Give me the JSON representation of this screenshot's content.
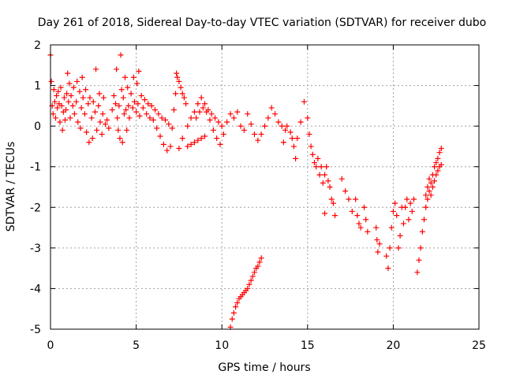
{
  "chart_data": {
    "type": "scatter",
    "title": "Day 261 of 2018, Sidereal Day-to-day VTEC variation (SDTVAR) for receiver dubo",
    "xlabel": "GPS time / hours",
    "ylabel": "SDTVAR / TECUs",
    "xlim": [
      0,
      25
    ],
    "ylim": [
      -5,
      2
    ],
    "xticks": [
      0,
      5,
      10,
      15,
      20,
      25
    ],
    "yticks": [
      -5,
      -4,
      -3,
      -2,
      -1,
      0,
      1,
      2
    ],
    "xtick_labels": [
      "0",
      "5",
      "10",
      "15",
      "20",
      "25"
    ],
    "ytick_labels": [
      "-5",
      "-4",
      "-3",
      "-2",
      "-1",
      "0",
      "1",
      "2"
    ],
    "grid": true,
    "marker": "+",
    "color": "#ff0000",
    "series": [
      {
        "name": "SDTVAR",
        "points": [
          [
            0.0,
            1.75
          ],
          [
            0.05,
            1.1
          ],
          [
            0.1,
            0.5
          ],
          [
            0.15,
            0.3
          ],
          [
            0.2,
            0.9
          ],
          [
            0.25,
            0.6
          ],
          [
            0.3,
            0.2
          ],
          [
            0.35,
            0.75
          ],
          [
            0.4,
            0.45
          ],
          [
            0.45,
            0.85
          ],
          [
            0.5,
            0.55
          ],
          [
            0.55,
            0.1
          ],
          [
            0.6,
            0.95
          ],
          [
            0.65,
            0.5
          ],
          [
            0.7,
            -0.1
          ],
          [
            0.75,
            0.35
          ],
          [
            0.8,
            0.7
          ],
          [
            0.85,
            0.15
          ],
          [
            0.9,
            0.4
          ],
          [
            0.95,
            0.8
          ],
          [
            1.0,
            1.3
          ],
          [
            1.05,
            0.6
          ],
          [
            1.1,
            1.05
          ],
          [
            1.15,
            0.2
          ],
          [
            1.2,
            0.75
          ],
          [
            1.3,
            0.5
          ],
          [
            1.35,
            0.95
          ],
          [
            1.4,
            0.3
          ],
          [
            1.5,
            0.6
          ],
          [
            1.55,
            1.1
          ],
          [
            1.6,
            0.1
          ],
          [
            1.7,
            0.85
          ],
          [
            1.75,
            -0.05
          ],
          [
            1.8,
            0.45
          ],
          [
            1.85,
            1.2
          ],
          [
            1.9,
            0.7
          ],
          [
            2.0,
            0.3
          ],
          [
            2.05,
            0.9
          ],
          [
            2.1,
            -0.15
          ],
          [
            2.2,
            0.55
          ],
          [
            2.25,
            -0.4
          ],
          [
            2.3,
            0.7
          ],
          [
            2.4,
            0.2
          ],
          [
            2.45,
            -0.3
          ],
          [
            2.5,
            0.6
          ],
          [
            2.6,
            0.35
          ],
          [
            2.65,
            1.4
          ],
          [
            2.7,
            -0.1
          ],
          [
            2.8,
            0.5
          ],
          [
            2.85,
            0.8
          ],
          [
            2.9,
            0.1
          ],
          [
            3.0,
            -0.2
          ],
          [
            3.05,
            0.3
          ],
          [
            3.1,
            0.7
          ],
          [
            3.2,
            0.05
          ],
          [
            3.3,
            0.15
          ],
          [
            3.4,
            -0.05
          ],
          [
            3.6,
            0.4
          ],
          [
            3.7,
            0.75
          ],
          [
            3.8,
            0.55
          ],
          [
            3.85,
            1.4
          ],
          [
            3.9,
            0.2
          ],
          [
            3.95,
            -0.1
          ],
          [
            4.0,
            0.5
          ],
          [
            4.05,
            -0.3
          ],
          [
            4.1,
            1.75
          ],
          [
            4.15,
            0.9
          ],
          [
            4.2,
            -0.4
          ],
          [
            4.25,
            0.7
          ],
          [
            4.3,
            0.3
          ],
          [
            4.35,
            1.2
          ],
          [
            4.4,
            0.4
          ],
          [
            4.45,
            -0.1
          ],
          [
            4.5,
            0.95
          ],
          [
            4.55,
            0.5
          ],
          [
            4.6,
            0.2
          ],
          [
            4.7,
            0.8
          ],
          [
            4.8,
            0.45
          ],
          [
            4.85,
            1.2
          ],
          [
            4.9,
            0.6
          ],
          [
            5.0,
            0.35
          ],
          [
            5.05,
            1.05
          ],
          [
            5.1,
            0.55
          ],
          [
            5.15,
            1.35
          ],
          [
            5.2,
            0.25
          ],
          [
            5.3,
            0.75
          ],
          [
            5.4,
            0.45
          ],
          [
            5.5,
            0.65
          ],
          [
            5.6,
            0.3
          ],
          [
            5.7,
            0.55
          ],
          [
            5.8,
            0.2
          ],
          [
            5.9,
            0.5
          ],
          [
            6.0,
            0.15
          ],
          [
            6.1,
            0.4
          ],
          [
            6.2,
            -0.05
          ],
          [
            6.3,
            0.3
          ],
          [
            6.4,
            -0.25
          ],
          [
            6.5,
            0.2
          ],
          [
            6.6,
            -0.45
          ],
          [
            6.7,
            0.15
          ],
          [
            6.8,
            -0.6
          ],
          [
            6.9,
            0.05
          ],
          [
            7.0,
            -0.5
          ],
          [
            7.1,
            -0.05
          ],
          [
            7.2,
            0.4
          ],
          [
            7.3,
            0.8
          ],
          [
            7.35,
            1.3
          ],
          [
            7.4,
            1.2
          ],
          [
            7.5,
            1.1
          ],
          [
            7.6,
            0.95
          ],
          [
            7.7,
            0.8
          ],
          [
            7.8,
            0.7
          ],
          [
            7.9,
            0.55
          ],
          [
            7.5,
            -0.55
          ],
          [
            7.7,
            -0.3
          ],
          [
            8.0,
            -0.5
          ],
          [
            8.2,
            -0.45
          ],
          [
            8.4,
            -0.4
          ],
          [
            8.6,
            -0.35
          ],
          [
            8.8,
            -0.3
          ],
          [
            9.0,
            -0.25
          ],
          [
            8.0,
            0.0
          ],
          [
            8.2,
            0.2
          ],
          [
            8.4,
            0.35
          ],
          [
            8.6,
            0.55
          ],
          [
            8.8,
            0.7
          ],
          [
            9.0,
            0.55
          ],
          [
            9.2,
            0.4
          ],
          [
            9.4,
            0.3
          ],
          [
            9.6,
            0.2
          ],
          [
            9.8,
            0.1
          ],
          [
            10.0,
            0.0
          ],
          [
            8.5,
            0.2
          ],
          [
            8.7,
            0.35
          ],
          [
            8.9,
            0.45
          ],
          [
            9.1,
            0.35
          ],
          [
            9.3,
            0.15
          ],
          [
            9.5,
            -0.1
          ],
          [
            9.7,
            -0.3
          ],
          [
            9.9,
            -0.45
          ],
          [
            10.1,
            -0.2
          ],
          [
            10.3,
            0.1
          ],
          [
            10.5,
            0.3
          ],
          [
            10.7,
            0.2
          ],
          [
            10.9,
            0.35
          ],
          [
            11.1,
            0.0
          ],
          [
            11.3,
            -0.1
          ],
          [
            11.5,
            0.3
          ],
          [
            11.7,
            0.05
          ],
          [
            11.9,
            -0.2
          ],
          [
            12.1,
            -0.35
          ],
          [
            12.3,
            -0.2
          ],
          [
            12.5,
            0.0
          ],
          [
            12.7,
            0.2
          ],
          [
            12.9,
            0.45
          ],
          [
            13.1,
            0.3
          ],
          [
            13.3,
            0.1
          ],
          [
            13.5,
            0.0
          ],
          [
            13.6,
            -0.4
          ],
          [
            13.7,
            -0.1
          ],
          [
            13.8,
            0.0
          ],
          [
            14.0,
            -0.15
          ],
          [
            14.1,
            -0.3
          ],
          [
            14.2,
            -0.5
          ],
          [
            14.3,
            -0.8
          ],
          [
            14.4,
            -0.3
          ],
          [
            14.6,
            0.1
          ],
          [
            14.8,
            0.6
          ],
          [
            15.0,
            0.2
          ],
          [
            15.1,
            -0.2
          ],
          [
            15.2,
            -0.5
          ],
          [
            15.3,
            -0.7
          ],
          [
            15.4,
            -0.9
          ],
          [
            15.5,
            -1.0
          ],
          [
            15.6,
            -0.8
          ],
          [
            15.7,
            -1.2
          ],
          [
            15.8,
            -1.0
          ],
          [
            15.9,
            -1.4
          ],
          [
            16.0,
            -1.2
          ],
          [
            16.1,
            -1.0
          ],
          [
            16.2,
            -1.35
          ],
          [
            16.3,
            -1.5
          ],
          [
            16.4,
            -1.8
          ],
          [
            16.5,
            -1.9
          ],
          [
            16.6,
            -2.2
          ],
          [
            16.0,
            -2.15
          ],
          [
            17.0,
            -1.3
          ],
          [
            17.2,
            -1.6
          ],
          [
            17.4,
            -1.8
          ],
          [
            17.6,
            -2.1
          ],
          [
            17.8,
            -1.8
          ],
          [
            17.9,
            -2.2
          ],
          [
            18.0,
            -2.4
          ],
          [
            18.1,
            -2.5
          ],
          [
            18.3,
            -2.0
          ],
          [
            18.4,
            -2.3
          ],
          [
            18.5,
            -2.6
          ],
          [
            19.0,
            -2.5
          ],
          [
            19.05,
            -2.8
          ],
          [
            19.1,
            -3.1
          ],
          [
            19.2,
            -2.9
          ],
          [
            19.6,
            -3.2
          ],
          [
            19.7,
            -3.5
          ],
          [
            19.8,
            -3.0
          ],
          [
            19.9,
            -2.5
          ],
          [
            20.0,
            -2.1
          ],
          [
            20.1,
            -1.9
          ],
          [
            20.2,
            -2.2
          ],
          [
            20.3,
            -3.0
          ],
          [
            20.4,
            -2.7
          ],
          [
            20.5,
            -2.0
          ],
          [
            20.6,
            -2.4
          ],
          [
            20.7,
            -2.0
          ],
          [
            20.8,
            -1.8
          ],
          [
            20.9,
            -2.3
          ],
          [
            21.0,
            -1.9
          ],
          [
            21.1,
            -2.1
          ],
          [
            21.2,
            -1.8
          ],
          [
            21.4,
            -3.6
          ],
          [
            21.5,
            -3.3
          ],
          [
            21.6,
            -3.0
          ],
          [
            21.7,
            -2.6
          ],
          [
            21.8,
            -2.3
          ],
          [
            21.9,
            -2.0
          ],
          [
            22.0,
            -1.8
          ],
          [
            22.1,
            -1.6
          ],
          [
            22.2,
            -1.4
          ],
          [
            22.3,
            -1.2
          ],
          [
            22.4,
            -1.0
          ],
          [
            22.5,
            -0.9
          ],
          [
            22.6,
            -0.8
          ],
          [
            22.7,
            -0.65
          ],
          [
            22.8,
            -0.55
          ],
          [
            21.9,
            -1.7
          ],
          [
            22.0,
            -1.5
          ],
          [
            22.1,
            -1.3
          ],
          [
            22.2,
            -1.7
          ],
          [
            22.3,
            -1.5
          ],
          [
            22.4,
            -1.35
          ],
          [
            22.5,
            -1.2
          ],
          [
            22.6,
            -1.1
          ],
          [
            22.7,
            -1.0
          ],
          [
            22.8,
            -0.95
          ],
          [
            10.5,
            -4.95
          ],
          [
            10.6,
            -4.75
          ],
          [
            10.7,
            -4.6
          ],
          [
            10.8,
            -4.45
          ],
          [
            10.9,
            -4.35
          ],
          [
            11.0,
            -4.25
          ],
          [
            11.1,
            -4.2
          ],
          [
            11.2,
            -4.15
          ],
          [
            11.3,
            -4.1
          ],
          [
            11.4,
            -4.05
          ],
          [
            11.5,
            -4.0
          ],
          [
            11.6,
            -3.9
          ],
          [
            11.7,
            -3.8
          ],
          [
            11.8,
            -3.7
          ],
          [
            11.9,
            -3.6
          ],
          [
            12.0,
            -3.5
          ],
          [
            12.1,
            -3.45
          ],
          [
            12.2,
            -3.35
          ],
          [
            12.3,
            -3.25
          ]
        ]
      }
    ]
  }
}
